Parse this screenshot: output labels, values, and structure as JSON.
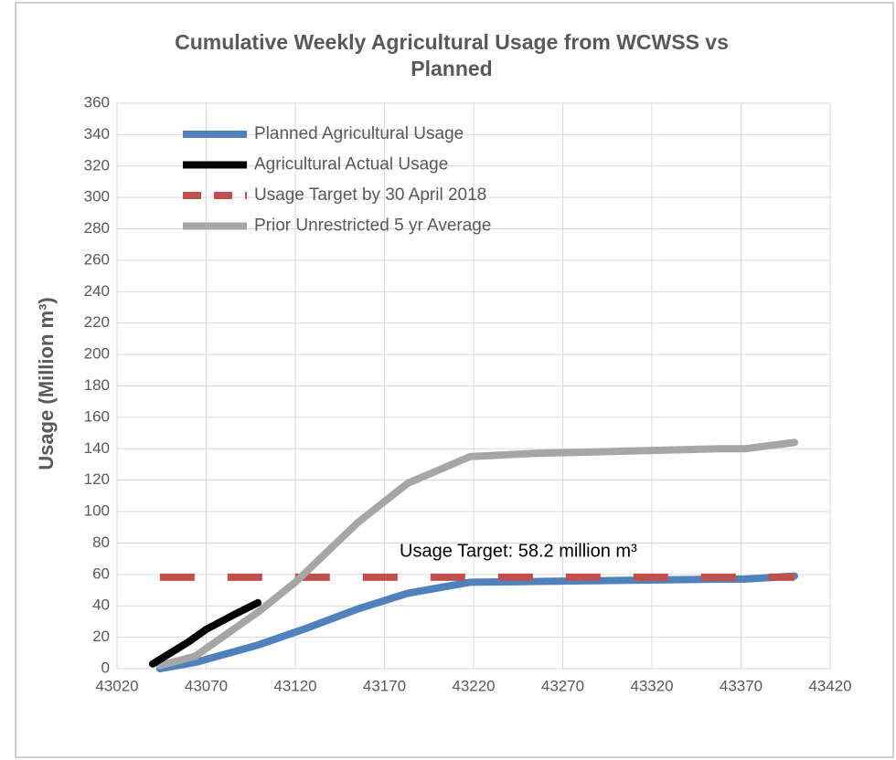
{
  "chart_data": {
    "type": "line",
    "title": "Cumulative Weekly Agricultural Usage from WCWSS vs",
    "title_line2": "Planned",
    "y_label": "Usage (Million m³)",
    "annotation": "Usage Target: 58.2 million m³",
    "xlim": [
      43020,
      43420
    ],
    "xticks": [
      43020,
      43070,
      43120,
      43170,
      43220,
      43270,
      43320,
      43370,
      43420
    ],
    "ylim": [
      0,
      360
    ],
    "yticks": [
      0,
      20,
      40,
      60,
      80,
      100,
      120,
      140,
      160,
      180,
      200,
      220,
      240,
      260,
      280,
      300,
      320,
      340,
      360
    ],
    "grid": true,
    "legend": "upper left",
    "series": [
      {
        "name": "Planned Agricultural Usage",
        "color": "#4f81bd",
        "dashed": false,
        "x": [
          43044,
          43064,
          43099,
          43127,
          43155,
          43183,
          43218,
          43253,
          43288,
          43323,
          43358,
          43372,
          43400
        ],
        "values": [
          0,
          4,
          15,
          26,
          38,
          48,
          55,
          55.5,
          56,
          56.5,
          57,
          57,
          59
        ]
      },
      {
        "name": "Agricultural Actual Usage",
        "color": "#000000",
        "dashed": false,
        "x": [
          43040,
          43050,
          43060,
          43070,
          43085,
          43099
        ],
        "values": [
          3,
          10,
          17,
          25,
          34,
          42
        ]
      },
      {
        "name": "Usage Target by 30 April 2018",
        "color": "#c0504d",
        "dashed": true,
        "x": [
          43044,
          43400
        ],
        "values": [
          58.2,
          58.2
        ]
      },
      {
        "name": "Prior Unrestricted 5 yr Average",
        "color": "#a6a6a6",
        "dashed": false,
        "x": [
          43044,
          43064,
          43099,
          43120,
          43155,
          43183,
          43218,
          43253,
          43288,
          43323,
          43358,
          43372,
          43400
        ],
        "values": [
          2,
          8,
          36,
          55,
          93,
          118,
          135,
          137,
          138,
          139,
          140,
          140,
          144
        ]
      }
    ]
  }
}
